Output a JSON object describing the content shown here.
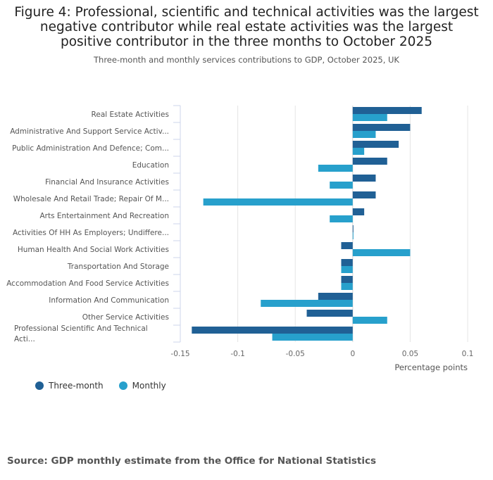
{
  "chart_data": {
    "type": "bar",
    "orientation": "horizontal",
    "title": "Figure 4: Professional, scientific and technical activities was the largest negative contributor while real estate activities was the largest positive contributor in the three months to October 2025",
    "subtitle": "Three-month and monthly services contributions to GDP, October 2025, UK",
    "xlabel": "Percentage points",
    "xlim": [
      -0.15,
      0.1
    ],
    "xticks": [
      "-0.15",
      "-0.1",
      "-0.05",
      "0",
      "0.05",
      "0.1"
    ],
    "xtick_values": [
      -0.15,
      -0.1,
      -0.05,
      0,
      0.05,
      0.1
    ],
    "grid": true,
    "legend_position": "bottom-left",
    "categories": [
      "Real Estate Activities",
      "Administrative And Support Service Activ...",
      "Public Administration And Defence; Com...",
      "Education",
      "Financial And Insurance Activities",
      "Wholesale And Retail Trade; Repair Of M...",
      "Arts Entertainment And Recreation",
      "Activities Of HH As Employers; Undiffere...",
      "Human Health And Social Work Activities",
      "Transportation And Storage",
      "Accommodation And Food Service Activities",
      "Information And Communication",
      "Other Service Activities",
      "Professional Scientific And Technical Acti..."
    ],
    "series": [
      {
        "name": "Three-month",
        "color": "#206095",
        "values": [
          0.06,
          0.05,
          0.04,
          0.03,
          0.02,
          0.02,
          0.01,
          0.0,
          -0.01,
          -0.01,
          -0.01,
          -0.03,
          -0.04,
          -0.14
        ]
      },
      {
        "name": "Monthly",
        "color": "#27a0cc",
        "values": [
          0.03,
          0.02,
          0.01,
          -0.03,
          -0.02,
          -0.13,
          -0.02,
          0.0,
          0.05,
          -0.01,
          -0.01,
          -0.08,
          0.03,
          -0.07
        ]
      }
    ]
  },
  "source": "Source: GDP monthly estimate from the Office for National Statistics"
}
